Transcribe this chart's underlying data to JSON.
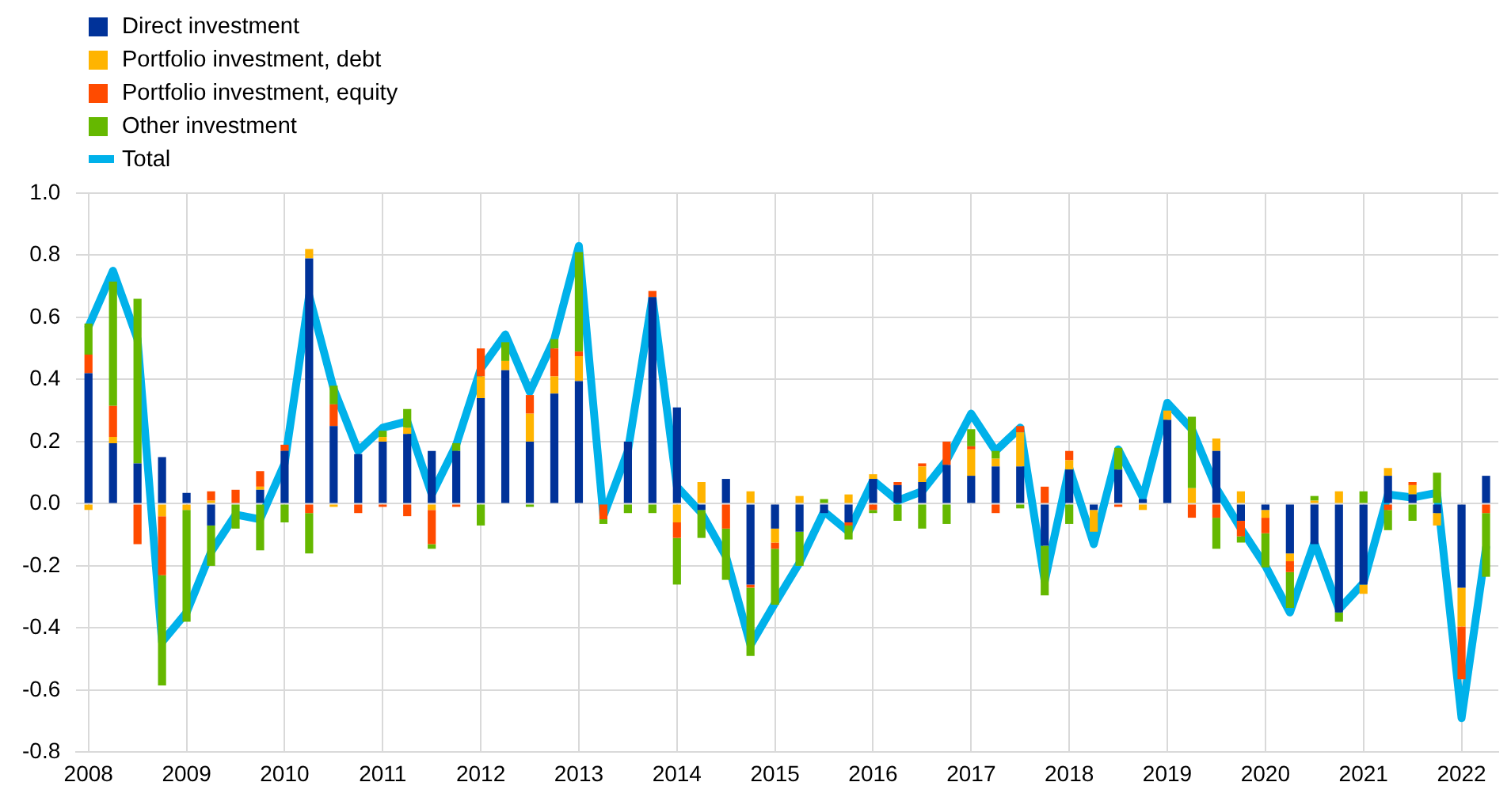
{
  "chart_data": {
    "type": "bar",
    "stacked": true,
    "grid": true,
    "legend": "top left",
    "categories": [
      "2008",
      null,
      null,
      null,
      "2009",
      null,
      null,
      null,
      "2010",
      null,
      null,
      null,
      "2011",
      null,
      null,
      null,
      "2012",
      null,
      null,
      null,
      "2013",
      null,
      null,
      null,
      "2014",
      null,
      null,
      null,
      "2015",
      null,
      null,
      null,
      "2016",
      null,
      null,
      null,
      "2017",
      null,
      null,
      null,
      "2018",
      null,
      null,
      null,
      "2019",
      null,
      null,
      null,
      "2020",
      null,
      null,
      null,
      "2021",
      null,
      null,
      null,
      "2022",
      null
    ],
    "ylim": [
      -0.8,
      1.0
    ],
    "yticks": [
      -0.8,
      -0.6,
      -0.4,
      -0.2,
      {
        "value": 0,
        "label": "0.0"
      },
      0.2,
      0.4,
      0.6,
      0.8,
      {
        "value": 1,
        "label": "1.0"
      }
    ],
    "series": [
      {
        "name": "Direct investment",
        "color": "#003299",
        "values": [
          0.42,
          0.195,
          0.13,
          0.15,
          0.035,
          -0.07,
          0,
          0.045,
          0.17,
          0.79,
          0.25,
          0.16,
          0.2,
          0.225,
          0.17,
          0.17,
          0.34,
          0.43,
          0.2,
          0.355,
          0.395,
          0,
          0.2,
          0.665,
          0.31,
          -0.02,
          0.08,
          -0.26,
          -0.08,
          -0.09,
          -0.03,
          -0.06,
          0.08,
          0.06,
          0.07,
          0.125,
          0.09,
          0.12,
          0.12,
          -0.135,
          0.11,
          -0.02,
          0.11,
          0.015,
          0.27,
          0,
          0.17,
          -0.055,
          -0.02,
          -0.16,
          -0.13,
          -0.35,
          -0.26,
          0.09,
          0.03,
          -0.03,
          -0.27,
          0.09
        ]
      },
      {
        "name": "Portfolio investment, debt",
        "color": "#ffb400",
        "values": [
          -0.02,
          0.02,
          0,
          -0.04,
          -0.02,
          0.01,
          0,
          0.01,
          0,
          0.03,
          -0.01,
          0,
          0.015,
          0.02,
          -0.02,
          0,
          0.07,
          0.03,
          0.09,
          0.055,
          0.08,
          0,
          0,
          0,
          -0.06,
          0.07,
          0,
          0.04,
          -0.045,
          0.025,
          0,
          0.03,
          0.015,
          0,
          0.05,
          0,
          0.085,
          0.025,
          0.11,
          0,
          0.03,
          -0.07,
          0,
          -0.02,
          0.03,
          0.05,
          0.04,
          0.04,
          -0.025,
          -0.025,
          0.01,
          0.04,
          -0.03,
          0.025,
          0.03,
          -0.04,
          -0.125,
          0
        ]
      },
      {
        "name": "Portfolio investment, equity",
        "color": "#ff4b00",
        "values": [
          0.06,
          0.1,
          -0.13,
          -0.19,
          0,
          0.03,
          0.045,
          0.05,
          0.02,
          -0.03,
          0.07,
          -0.03,
          -0.01,
          -0.04,
          -0.11,
          -0.01,
          0.09,
          0,
          0.06,
          0.09,
          0.015,
          -0.05,
          0,
          0.02,
          -0.05,
          0,
          -0.08,
          -0.01,
          -0.02,
          0,
          0,
          -0.01,
          -0.02,
          0.01,
          0.01,
          0.075,
          0.01,
          -0.03,
          0.02,
          0.055,
          0.03,
          0,
          -0.01,
          0,
          0,
          -0.045,
          -0.045,
          -0.05,
          -0.05,
          -0.035,
          0,
          0,
          0,
          -0.02,
          0.01,
          0,
          -0.17,
          -0.03
        ]
      },
      {
        "name": "Other investment",
        "color": "#65b800",
        "values": [
          0.1,
          0.4,
          0.53,
          -0.355,
          -0.36,
          -0.13,
          -0.08,
          -0.15,
          -0.06,
          -0.13,
          0.06,
          0,
          0.02,
          0.06,
          -0.015,
          0.025,
          -0.07,
          0.06,
          -0.01,
          0.03,
          0.32,
          -0.015,
          -0.03,
          -0.03,
          -0.15,
          -0.09,
          -0.165,
          -0.22,
          -0.18,
          -0.11,
          0.015,
          -0.045,
          -0.01,
          -0.055,
          -0.08,
          -0.065,
          0.055,
          0.025,
          -0.015,
          -0.16,
          -0.065,
          0,
          0.07,
          0,
          0,
          0.23,
          -0.1,
          -0.02,
          -0.11,
          -0.115,
          0.015,
          -0.03,
          0.04,
          -0.065,
          -0.055,
          0.1,
          null,
          -0.205
        ]
      },
      {
        "name": "Total",
        "type": "line",
        "color": "#00b1ea",
        "values": [
          0.57,
          0.75,
          0.53,
          -0.445,
          -0.35,
          -0.155,
          -0.035,
          -0.05,
          0.13,
          0.67,
          0.37,
          0.17,
          0.245,
          0.265,
          0.03,
          0.19,
          0.435,
          0.545,
          0.36,
          0.53,
          0.83,
          -0.04,
          0.17,
          0.665,
          0.055,
          -0.03,
          -0.17,
          -0.455,
          -0.32,
          -0.19,
          -0.025,
          -0.09,
          0.075,
          0.01,
          0.04,
          0.14,
          0.29,
          0.17,
          0.245,
          -0.25,
          0.115,
          -0.13,
          0.175,
          0.02,
          0.325,
          0.24,
          0.05,
          -0.08,
          -0.2,
          -0.35,
          -0.125,
          -0.34,
          -0.255,
          0.03,
          0.02,
          0.035,
          -0.69,
          -0.14
        ]
      }
    ]
  }
}
